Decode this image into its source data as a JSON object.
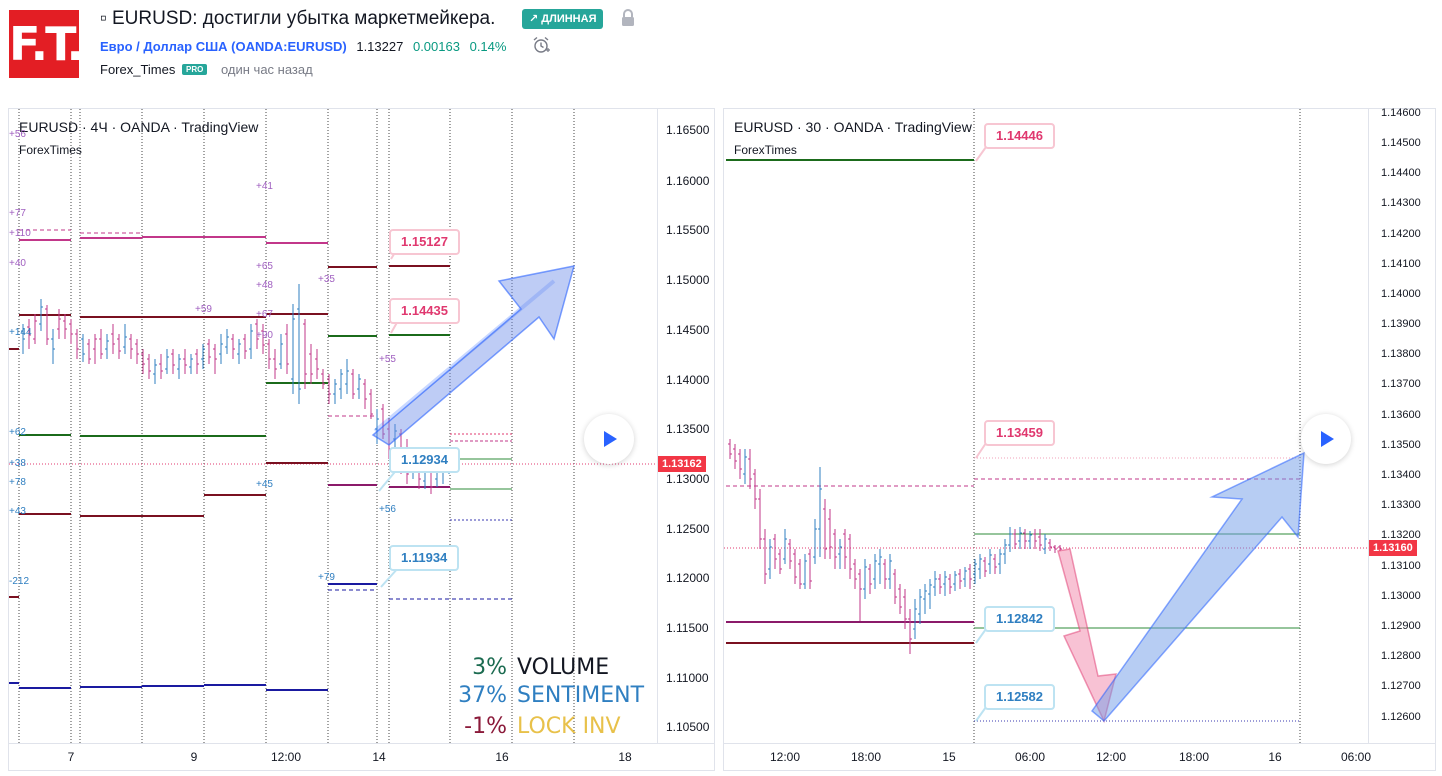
{
  "header": {
    "logo_text": "F.T.",
    "title": "▫ EURUSD: достигли убытка маркетмейкера.",
    "direction_badge": "↗ ДЛИННАЯ",
    "symbol_link": "Евро / Доллар США (OANDA:EURUSD)",
    "price": "1.13227",
    "change": "0.00163",
    "change_pct": "0.14%",
    "author": "Forex_Times",
    "author_badge": "PRO",
    "published": "один час назад"
  },
  "left_chart": {
    "legend": "EURUSD · 4Ч · OANDA · TradingView",
    "sublegend": "ForexTimes",
    "price_ticks": [
      "1.16500",
      "1.16000",
      "1.15500",
      "1.15000",
      "1.14500",
      "1.14000",
      "1.13500",
      "1.13000",
      "1.12500",
      "1.12000",
      "1.11500",
      "1.11000",
      "1.10500"
    ],
    "last_price": "1.13162",
    "time_ticks": [
      "7",
      "9",
      "12:00",
      "14",
      "16",
      "18"
    ],
    "callouts": {
      "c1": "1.15127",
      "c2": "1.14435",
      "c3": "1.12934",
      "c4": "1.11934"
    },
    "level_tags": [
      "+56",
      "+77",
      "+110",
      "+40",
      "+144",
      "+62",
      "+38",
      "+78",
      "+43",
      "-212",
      "+41",
      "+65",
      "+48",
      "+67",
      "+90",
      "+45",
      "+59",
      "+35",
      "+55",
      "+56",
      "+79"
    ],
    "stats": {
      "volume_value": "3%",
      "volume_label": "VOLUME",
      "sentiment_value": "37%",
      "sentiment_label": "SENTIMENT",
      "lock_value": "-1%",
      "lock_label": "LOCK INV"
    }
  },
  "right_chart": {
    "legend": "EURUSD · 30 · OANDA · TradingView",
    "sublegend": "ForexTimes",
    "price_ticks": [
      "1.14600",
      "1.14500",
      "1.14400",
      "1.14300",
      "1.14200",
      "1.14100",
      "1.14000",
      "1.13900",
      "1.13800",
      "1.13700",
      "1.13600",
      "1.13500",
      "1.13400",
      "1.13300",
      "1.13200",
      "1.13100",
      "1.13000",
      "1.12900",
      "1.12800",
      "1.12700",
      "1.12600"
    ],
    "last_price": "1.13160",
    "time_ticks": [
      "12:00",
      "18:00",
      "15",
      "06:00",
      "12:00",
      "18:00",
      "16",
      "06:00"
    ],
    "callouts": {
      "c1": "1.14446",
      "c2": "1.13459",
      "c3": "1.12842",
      "c4": "1.12582"
    }
  },
  "colors": {
    "logo": "#e31e24",
    "long_badge": "#26a69a",
    "symbol_link": "#2962ff",
    "up": "#089981",
    "last_price": "#f23645",
    "volume": "#1b6b50",
    "sentiment": "#2f7fc1",
    "lock": "#8b1a3a",
    "lock_label": "#e8c14a"
  },
  "icons": [
    "lock-icon",
    "alarm-clock-icon",
    "play-icon",
    "arrow-up-icon"
  ]
}
